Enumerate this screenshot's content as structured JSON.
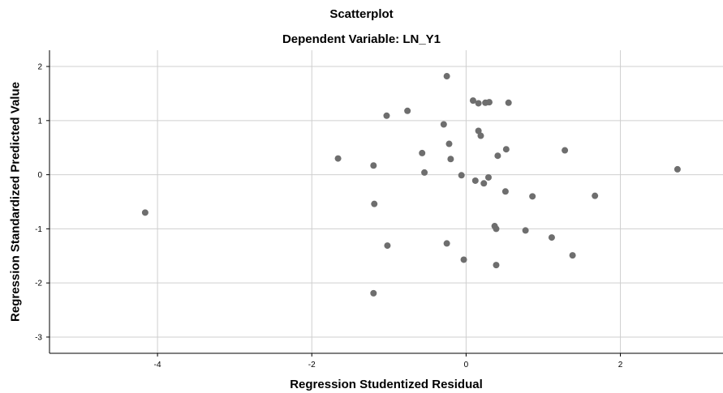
{
  "chart_data": {
    "type": "scatter",
    "title": "Scatterplot",
    "subtitle": "Dependent Variable: LN_Y1",
    "xlabel": "Regression Studentized Residual",
    "ylabel": "Regression Standardized Predicted Value",
    "xlim": [
      -5.4,
      3.33
    ],
    "ylim": [
      -3.3,
      2.3
    ],
    "xticks": [
      -4,
      -2,
      0,
      2
    ],
    "yticks": [
      2,
      1,
      0,
      -1,
      -2,
      -3
    ],
    "grid": true,
    "point_color": "#6e6e6e",
    "points": [
      {
        "x": -0.25,
        "y": 1.82
      },
      {
        "x": 0.09,
        "y": 1.37
      },
      {
        "x": 0.16,
        "y": 1.32
      },
      {
        "x": 0.25,
        "y": 1.33
      },
      {
        "x": 0.3,
        "y": 1.34
      },
      {
        "x": 0.55,
        "y": 1.33
      },
      {
        "x": -0.76,
        "y": 1.18
      },
      {
        "x": -1.03,
        "y": 1.09
      },
      {
        "x": -0.29,
        "y": 0.93
      },
      {
        "x": 0.16,
        "y": 0.81
      },
      {
        "x": 0.19,
        "y": 0.72
      },
      {
        "x": -0.22,
        "y": 0.57
      },
      {
        "x": 0.52,
        "y": 0.47
      },
      {
        "x": 1.28,
        "y": 0.45
      },
      {
        "x": -0.57,
        "y": 0.4
      },
      {
        "x": 0.41,
        "y": 0.35
      },
      {
        "x": -1.66,
        "y": 0.3
      },
      {
        "x": -0.2,
        "y": 0.29
      },
      {
        "x": -1.2,
        "y": 0.17
      },
      {
        "x": 2.74,
        "y": 0.1
      },
      {
        "x": -0.54,
        "y": 0.04
      },
      {
        "x": -0.06,
        "y": -0.01
      },
      {
        "x": 0.29,
        "y": -0.05
      },
      {
        "x": 0.12,
        "y": -0.11
      },
      {
        "x": 0.23,
        "y": -0.16
      },
      {
        "x": 0.51,
        "y": -0.31
      },
      {
        "x": 0.86,
        "y": -0.4
      },
      {
        "x": 1.67,
        "y": -0.39
      },
      {
        "x": -1.19,
        "y": -0.54
      },
      {
        "x": -4.16,
        "y": -0.7
      },
      {
        "x": 0.37,
        "y": -0.95
      },
      {
        "x": 0.39,
        "y": -1.0
      },
      {
        "x": 0.77,
        "y": -1.03
      },
      {
        "x": 1.11,
        "y": -1.16
      },
      {
        "x": -0.25,
        "y": -1.27
      },
      {
        "x": -1.02,
        "y": -1.31
      },
      {
        "x": 1.38,
        "y": -1.49
      },
      {
        "x": -0.03,
        "y": -1.57
      },
      {
        "x": 0.39,
        "y": -1.67
      },
      {
        "x": -1.2,
        "y": -2.19
      }
    ]
  }
}
